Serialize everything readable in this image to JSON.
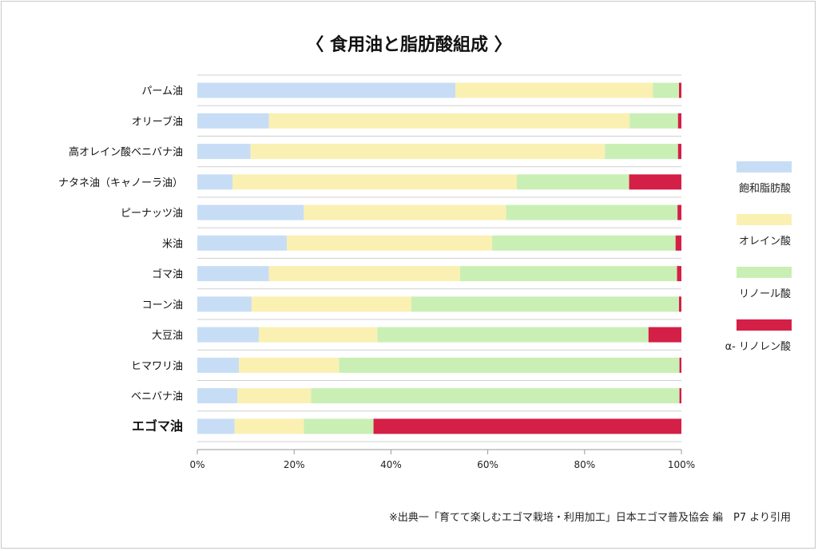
{
  "chart_data": {
    "type": "bar",
    "stacked": true,
    "orientation": "horizontal",
    "title": "〈 食用油と脂肪酸組成 〉",
    "categories": [
      "パーム油",
      "オリーブ油",
      "高オレイン酸ベニバナ油",
      "ナタネ油（キャノーラ油）",
      "ピーナッツ油",
      "米油",
      "ゴマ油",
      "コーン油",
      "大豆油",
      "ヒマワリ油",
      "ベニバナ油",
      "エゴマ油"
    ],
    "emphasized_category": "エゴマ油",
    "series": [
      {
        "name": "飽和脂肪酸",
        "color": "#c7ddf5",
        "values": [
          53.3,
          14.8,
          11.0,
          7.3,
          22.0,
          18.5,
          14.8,
          11.2,
          12.7,
          8.6,
          8.3,
          7.7
        ]
      },
      {
        "name": "オレイン酸",
        "color": "#faf0b2",
        "values": [
          40.8,
          74.5,
          73.2,
          58.7,
          41.8,
          42.4,
          39.5,
          33.0,
          24.5,
          20.7,
          15.2,
          14.3
        ]
      },
      {
        "name": "リノール酸",
        "color": "#c9efb5",
        "values": [
          5.4,
          10.0,
          15.1,
          23.2,
          35.4,
          37.9,
          44.8,
          55.3,
          56.0,
          70.3,
          76.1,
          14.4
        ]
      },
      {
        "name": "α- リノレン酸",
        "color": "#d41f47",
        "values": [
          0.5,
          0.7,
          0.7,
          10.8,
          0.8,
          1.2,
          0.9,
          0.5,
          6.8,
          0.4,
          0.4,
          63.6
        ]
      }
    ],
    "xlim": [
      0,
      100
    ],
    "xticks": [
      "0%",
      "20%",
      "40%",
      "60%",
      "80%",
      "100%"
    ],
    "legend_position": "right",
    "grid": true
  },
  "source_note": "※出典一「育てて楽しむエゴマ栽培・利用加工」日本エゴマ普及協会 編　P7 より引用"
}
